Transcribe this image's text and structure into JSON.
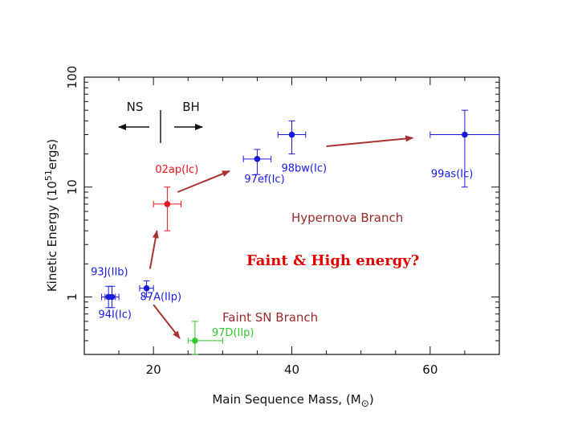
{
  "chart_data": {
    "type": "scatter",
    "xlabel": "Main Sequence Mass, (M",
    "xlabel_sub": "⊙",
    "xlabel_close": ")",
    "ylabel": "Kinetic Energy (10",
    "ylabel_sup": "51",
    "ylabel_end": "ergs)",
    "xlim": [
      10,
      70
    ],
    "ylim_log": [
      0.3,
      100
    ],
    "yscale": "log",
    "x_ticks": [
      20,
      40,
      60
    ],
    "x_tick_labels": [
      "20",
      "40",
      "60"
    ],
    "y_ticks": [
      1,
      10,
      100
    ],
    "y_tick_labels": [
      "1",
      "10",
      "100"
    ],
    "points": [
      {
        "name": "93J(IIb)",
        "x": 13.5,
        "y": 1.0,
        "xerr": [
          1.0,
          1.0
        ],
        "yerr": [
          0.8,
          1.25
        ],
        "color": "#1a1adc"
      },
      {
        "name": "94I(Ic)",
        "x": 14.0,
        "y": 1.0,
        "xerr": [
          1.0,
          1.0
        ],
        "yerr": [
          0.8,
          1.25
        ],
        "color": "#1a1adc"
      },
      {
        "name": "87A(IIp)",
        "x": 19.0,
        "y": 1.2,
        "xerr": [
          1.0,
          1.0
        ],
        "yerr": [
          1.0,
          1.4
        ],
        "color": "#1a1adc"
      },
      {
        "name": "02ap(Ic)",
        "x": 22.0,
        "y": 7.0,
        "xerr": [
          2.0,
          2.0
        ],
        "yerr": [
          4.0,
          10.0
        ],
        "color": "#e8141e"
      },
      {
        "name": "97D(IIp)",
        "x": 26.0,
        "y": 0.4,
        "xerr": [
          1.0,
          4.0
        ],
        "yerr": [
          0.3,
          0.6
        ],
        "color": "#32c832"
      },
      {
        "name": "97ef(Ic)",
        "x": 35.0,
        "y": 18.0,
        "xerr": [
          2.0,
          2.0
        ],
        "yerr": [
          13.0,
          22.0
        ],
        "color": "#1a1adc"
      },
      {
        "name": "98bw(Ic)",
        "x": 40.0,
        "y": 30.0,
        "xerr": [
          2.0,
          2.0
        ],
        "yerr": [
          20.0,
          40.0
        ],
        "color": "#1a1adc"
      },
      {
        "name": "99as(Ic)",
        "x": 65.0,
        "y": 30.0,
        "xerr": [
          5.0,
          5.0
        ],
        "yerr": [
          10.0,
          50.0
        ],
        "color": "#1a1adc"
      }
    ],
    "arrows": [
      {
        "from": [
          19.5,
          1.8
        ],
        "to": [
          20.5,
          4.0
        ]
      },
      {
        "from": [
          20.0,
          0.85
        ],
        "to": [
          23.8,
          0.42
        ]
      },
      {
        "from": [
          23.5,
          9.0
        ],
        "to": [
          31.0,
          14.0
        ]
      },
      {
        "from": [
          45.0,
          23.5
        ],
        "to": [
          57.5,
          28.0
        ]
      }
    ],
    "annotations": [
      {
        "text": "NS",
        "color": "#111111"
      },
      {
        "text": "BH",
        "color": "#111111"
      },
      {
        "text": "Hypernova Branch",
        "color": "#9a2a2a"
      },
      {
        "text": "Faint SN Branch",
        "color": "#9a2a2a"
      },
      {
        "text": "Faint & High energy?",
        "color": "#e00000"
      }
    ]
  }
}
